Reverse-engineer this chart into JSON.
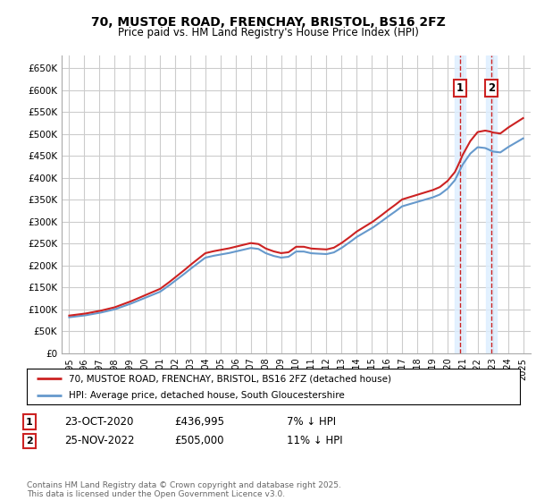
{
  "title": "70, MUSTOE ROAD, FRENCHAY, BRISTOL, BS16 2FZ",
  "subtitle": "Price paid vs. HM Land Registry's House Price Index (HPI)",
  "background_color": "#ffffff",
  "grid_color": "#cccccc",
  "hpi_color": "#6699cc",
  "price_color": "#cc2222",
  "highlight_color": "#ddeeff",
  "annotation_color": "#cc2222",
  "purchase1_date": 2020.82,
  "purchase1_price": 436995,
  "purchase2_date": 2022.91,
  "purchase2_price": 505000,
  "table": [
    {
      "num": "1",
      "date": "23-OCT-2020",
      "price": "£436,995",
      "note": "7% ↓ HPI"
    },
    {
      "num": "2",
      "date": "25-NOV-2022",
      "price": "£505,000",
      "note": "11% ↓ HPI"
    }
  ],
  "legend1": "70, MUSTOE ROAD, FRENCHAY, BRISTOL, BS16 2FZ (detached house)",
  "legend2": "HPI: Average price, detached house, South Gloucestershire",
  "footnote": "Contains HM Land Registry data © Crown copyright and database right 2025.\nThis data is licensed under the Open Government Licence v3.0.",
  "ylim_min": 0,
  "ylim_max": 680000,
  "yticks": [
    0,
    50000,
    100000,
    150000,
    200000,
    250000,
    300000,
    350000,
    400000,
    450000,
    500000,
    550000,
    600000,
    650000
  ],
  "xlim_min": 1994.5,
  "xlim_max": 2025.5,
  "years_hpi": [
    1995,
    1995.5,
    1996,
    1996.5,
    1997,
    1997.5,
    1998,
    1998.5,
    1999,
    1999.5,
    2000,
    2000.5,
    2001,
    2001.5,
    2002,
    2002.5,
    2003,
    2003.5,
    2004,
    2004.5,
    2005,
    2005.5,
    2006,
    2006.5,
    2007,
    2007.5,
    2008,
    2008.5,
    2009,
    2009.5,
    2010,
    2010.5,
    2011,
    2011.5,
    2012,
    2012.5,
    2013,
    2013.5,
    2014,
    2014.5,
    2015,
    2015.5,
    2016,
    2016.5,
    2017,
    2017.5,
    2018,
    2018.5,
    2019,
    2019.5,
    2020,
    2020.5,
    2021,
    2021.5,
    2022,
    2022.5,
    2023,
    2023.5,
    2024,
    2024.5,
    2025
  ],
  "hpi_values": [
    82000,
    84000,
    86000,
    89000,
    92000,
    96000,
    100000,
    106000,
    112000,
    119000,
    126000,
    133000,
    140000,
    152000,
    165000,
    178000,
    192000,
    205000,
    218000,
    222000,
    225000,
    228000,
    232000,
    236000,
    240000,
    238000,
    228000,
    222000,
    218000,
    220000,
    232000,
    232000,
    228000,
    227000,
    226000,
    230000,
    240000,
    252000,
    265000,
    275000,
    285000,
    297000,
    310000,
    322000,
    335000,
    340000,
    345000,
    350000,
    355000,
    362000,
    375000,
    395000,
    430000,
    455000,
    470000,
    468000,
    460000,
    458000,
    470000,
    480000,
    490000
  ]
}
